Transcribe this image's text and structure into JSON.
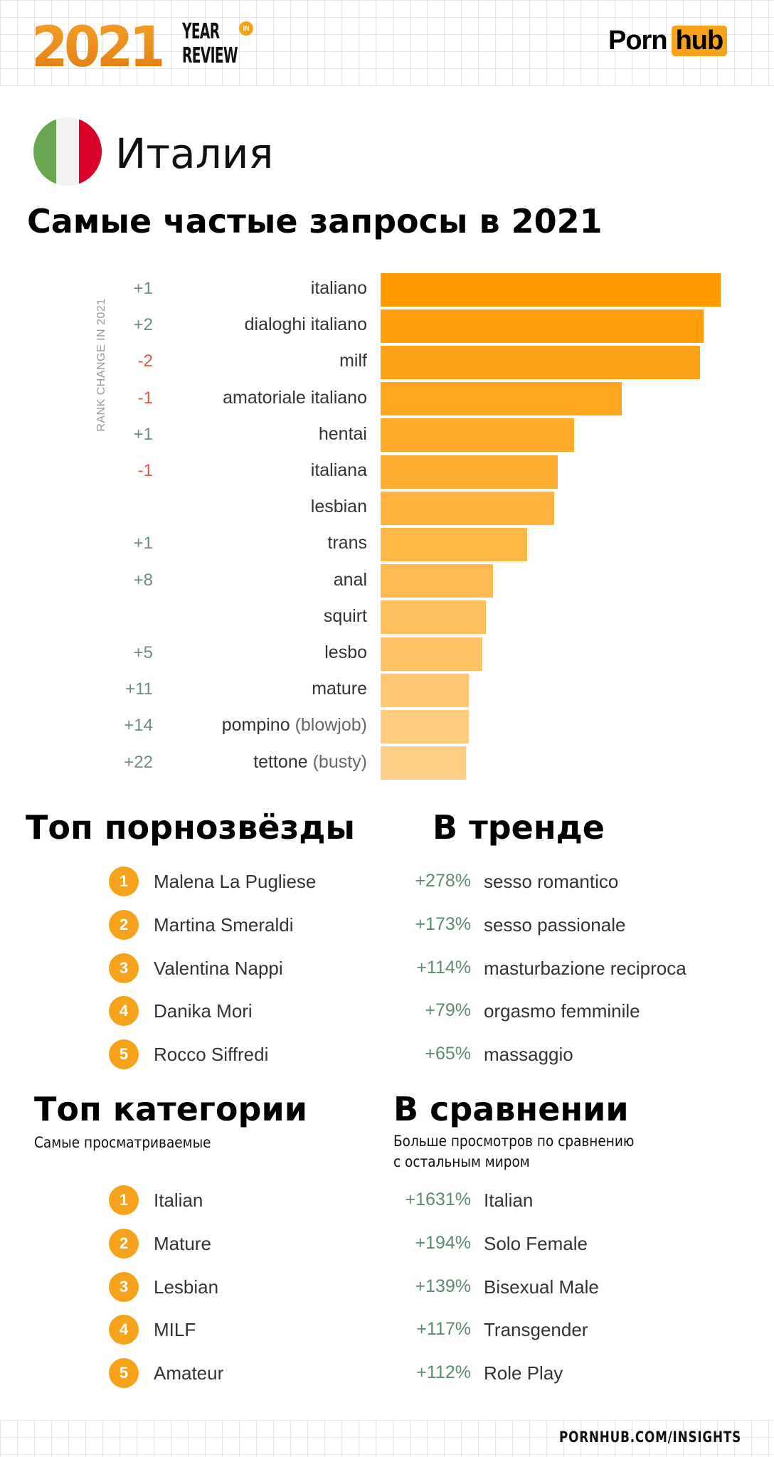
{
  "header": {
    "logo_year": "2021",
    "logo_year_text": "YEAR",
    "logo_in": "IN",
    "logo_review": "REVIEW",
    "brand_part1": "Porn",
    "brand_part2": "hub"
  },
  "country": {
    "name": "Италия",
    "flag_colors": [
      "#6aa84f",
      "#f2f2f2",
      "#d9002a"
    ]
  },
  "searches": {
    "title": "Самые частые запросы в 2021",
    "axis_label": "RANK CHANGE IN 2021"
  },
  "chart_data": {
    "type": "bar",
    "orientation": "horizontal",
    "title": "Самые частые запросы в 2021",
    "ylabel": "RANK CHANGE IN 2021",
    "categories": [
      "italiano",
      "dialoghi italiano",
      "milf",
      "amatoriale italiano",
      "hentai",
      "italiana",
      "lesbian",
      "trans",
      "anal",
      "squirt",
      "lesbo",
      "mature",
      "pompino (blowjob)",
      "tettone (busty)"
    ],
    "category_main": [
      "italiano",
      "dialoghi italiano",
      "milf",
      "amatoriale italiano",
      "hentai",
      "italiana",
      "lesbian",
      "trans",
      "anal",
      "squirt",
      "lesbo",
      "mature",
      "pompino",
      "tettone"
    ],
    "category_translation": [
      "",
      "",
      "",
      "",
      "",
      "",
      "",
      "",
      "",
      "",
      "",
      "",
      "(blowjob)",
      "(busty)"
    ],
    "rank_change": [
      "+1",
      "+2",
      "-2",
      "-1",
      "+1",
      "-1",
      "",
      "+1",
      "+8",
      "",
      "+5",
      "+11",
      "+14",
      "+22"
    ],
    "values": [
      100,
      95,
      94,
      71,
      57,
      52,
      51,
      43,
      33,
      31,
      30,
      26,
      26,
      25
    ],
    "value_unit": "relative (% of top bar, estimated)",
    "colors": {
      "bar_start": "#ff9a00",
      "bar_end": "#ffcf86",
      "positive": "#6f8f7c",
      "negative": "#d9574a"
    },
    "grid": false,
    "legend": "none"
  },
  "pornstars": {
    "title": "Топ порнозвёзды",
    "items": [
      {
        "rank": "1",
        "name": "Malena La Pugliese"
      },
      {
        "rank": "2",
        "name": "Martina Smeraldi"
      },
      {
        "rank": "3",
        "name": "Valentina Nappi"
      },
      {
        "rank": "4",
        "name": "Danika Mori"
      },
      {
        "rank": "5",
        "name": "Rocco Siffredi"
      }
    ]
  },
  "trending": {
    "title": "В тренде",
    "items": [
      {
        "change": "+278%",
        "term": "sesso romantico"
      },
      {
        "change": "+173%",
        "term": "sesso passionale"
      },
      {
        "change": "+114%",
        "term": "masturbazione reciproca"
      },
      {
        "change": "+79%",
        "term": "orgasmo femminile"
      },
      {
        "change": "+65%",
        "term": "massaggio"
      }
    ]
  },
  "categories": {
    "title": "Топ категории",
    "subtitle": "Самые просматриваемые",
    "items": [
      {
        "rank": "1",
        "name": "Italian"
      },
      {
        "rank": "2",
        "name": "Mature"
      },
      {
        "rank": "3",
        "name": "Lesbian"
      },
      {
        "rank": "4",
        "name": "MILF"
      },
      {
        "rank": "5",
        "name": "Amateur"
      }
    ]
  },
  "compare": {
    "title": "В сравнении",
    "subtitle_line1": "Больше просмотров по сравнению",
    "subtitle_line2": "с остальным миром",
    "items": [
      {
        "change": "+1631%",
        "term": "Italian"
      },
      {
        "change": "+194%",
        "term": "Solo Female"
      },
      {
        "change": "+139%",
        "term": "Bisexual Male"
      },
      {
        "change": "+117%",
        "term": "Transgender"
      },
      {
        "change": "+112%",
        "term": "Role Play"
      }
    ]
  },
  "footer": {
    "url": "PORNHUB.COM/INSIGHTS"
  },
  "colors": {
    "accent": "#f7a21b",
    "percent_green": "#5d8a6c"
  }
}
